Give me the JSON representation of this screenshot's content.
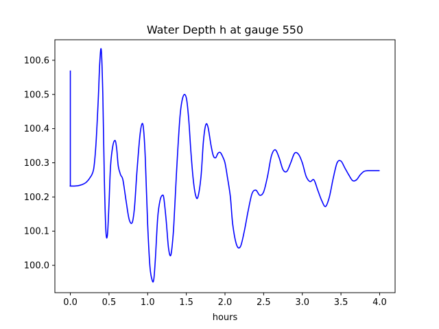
{
  "chart_data": {
    "type": "line",
    "title": "Water Depth h at gauge 550",
    "xlabel": "hours",
    "ylabel": "",
    "xlim": [
      -0.2,
      4.2
    ],
    "ylim": [
      99.92,
      100.66
    ],
    "grid": false,
    "legend": "none",
    "xticks": [
      0.0,
      0.5,
      1.0,
      1.5,
      2.0,
      2.5,
      3.0,
      3.5,
      4.0
    ],
    "xtick_labels": [
      "0.0",
      "0.5",
      "1.0",
      "1.5",
      "2.0",
      "2.5",
      "3.0",
      "3.5",
      "4.0"
    ],
    "yticks": [
      100.0,
      100.1,
      100.2,
      100.3,
      100.4,
      100.5,
      100.6
    ],
    "ytick_labels": [
      "100.0",
      "100.1",
      "100.2",
      "100.3",
      "100.4",
      "100.5",
      "100.6"
    ],
    "series": [
      {
        "color": "#0000ff",
        "x": [
          0.0,
          0.0,
          0.0,
          0.05,
          0.1,
          0.15,
          0.2,
          0.25,
          0.3,
          0.33,
          0.36,
          0.38,
          0.4,
          0.42,
          0.44,
          0.46,
          0.48,
          0.5,
          0.52,
          0.55,
          0.58,
          0.6,
          0.62,
          0.65,
          0.68,
          0.72,
          0.76,
          0.8,
          0.83,
          0.86,
          0.9,
          0.93,
          0.95,
          0.97,
          1.0,
          1.03,
          1.06,
          1.08,
          1.1,
          1.13,
          1.16,
          1.19,
          1.21,
          1.24,
          1.27,
          1.3,
          1.33,
          1.35,
          1.38,
          1.42,
          1.46,
          1.5,
          1.53,
          1.56,
          1.59,
          1.62,
          1.65,
          1.69,
          1.72,
          1.75,
          1.78,
          1.82,
          1.85,
          1.88,
          1.91,
          1.94,
          1.97,
          2.0,
          2.03,
          2.07,
          2.1,
          2.15,
          2.2,
          2.25,
          2.3,
          2.35,
          2.4,
          2.45,
          2.5,
          2.55,
          2.6,
          2.65,
          2.7,
          2.75,
          2.8,
          2.85,
          2.9,
          2.95,
          3.0,
          3.05,
          3.1,
          3.15,
          3.2,
          3.25,
          3.3,
          3.35,
          3.4,
          3.45,
          3.5,
          3.55,
          3.6,
          3.65,
          3.7,
          3.75,
          3.8,
          3.85,
          3.9,
          3.95,
          4.0
        ],
        "y": [
          100.57,
          100.232,
          100.232,
          100.232,
          100.233,
          100.236,
          100.242,
          100.255,
          100.28,
          100.35,
          100.48,
          100.59,
          100.63,
          100.5,
          100.25,
          100.1,
          100.09,
          100.18,
          100.29,
          100.35,
          100.365,
          100.34,
          100.29,
          100.265,
          100.25,
          100.19,
          100.135,
          100.125,
          100.17,
          100.27,
          100.38,
          100.415,
          100.39,
          100.31,
          100.12,
          99.995,
          99.955,
          99.96,
          100.02,
          100.14,
          100.19,
          100.205,
          100.195,
          100.13,
          100.05,
          100.03,
          100.09,
          100.17,
          100.3,
          100.44,
          100.495,
          100.49,
          100.43,
          100.33,
          100.25,
          100.205,
          100.2,
          100.26,
          100.36,
          100.41,
          100.405,
          100.35,
          100.32,
          100.315,
          100.328,
          100.33,
          100.318,
          100.3,
          100.26,
          100.2,
          100.12,
          100.06,
          100.055,
          100.1,
          100.16,
          100.21,
          100.22,
          100.205,
          100.215,
          100.26,
          100.32,
          100.338,
          100.315,
          100.28,
          100.275,
          100.3,
          100.328,
          100.325,
          100.3,
          100.26,
          100.245,
          100.25,
          100.22,
          100.19,
          100.172,
          100.2,
          100.255,
          100.3,
          100.305,
          100.285,
          100.265,
          100.248,
          100.25,
          100.265,
          100.275,
          100.277,
          100.277,
          100.277,
          100.277
        ]
      }
    ]
  }
}
